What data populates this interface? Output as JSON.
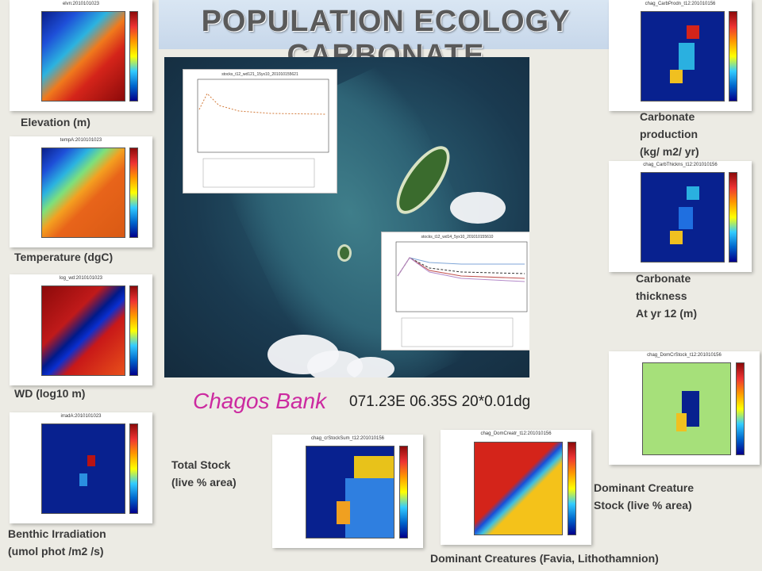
{
  "title": "POPULATION ECOLOGY CARBONATE",
  "map": {
    "name": "Chagos Bank",
    "coords": "071.23E 06.35S 20*0.01dg"
  },
  "panels": {
    "elevation": {
      "title": "elvn:2010101023",
      "label": [
        "Elevation (m)"
      ]
    },
    "temperature": {
      "title": "tempA:2010101023",
      "label": [
        "Temperature (dgC)"
      ]
    },
    "wd": {
      "title": "log_wd:2010101023",
      "label": [
        "WD (log10 m)"
      ]
    },
    "irradiation": {
      "title": "irradA:2010101023",
      "label": [
        "Benthic Irradiation",
        "(umol phot /m2 /s)"
      ]
    },
    "total_stock": {
      "title": "chag_crStockSum_t12:201010156",
      "label": [
        "Total Stock",
        "(live % area)"
      ]
    },
    "dominant_creatures": {
      "title": "chag_DomCreatr_t12:201010156",
      "label": [
        "Dominant Creatures (Favia, Lithothamnion)"
      ]
    },
    "dominant_stock": {
      "title": "chag_DomCrStock_t12:201010156",
      "label": [
        "Dominant Creature",
        "Stock (live % area)"
      ]
    },
    "carbonate_production": {
      "title": "chag_CarbProdn_t12:201010156",
      "label": [
        "Carbonate",
        "production",
        "(kg/ m2/ yr)"
      ]
    },
    "carbonate_thickness": {
      "title": "chag_CarbThickns_t12:201010156",
      "label": [
        "Carbonate",
        "thickness",
        "At yr 12 (m)"
      ]
    }
  },
  "line_plots": {
    "plot1": {
      "title": "stocks_t12_wd121_15yx10_201010155621"
    },
    "plot2": {
      "title": "stocks_t12_wd14_5yx10_201010155610"
    }
  },
  "colors": {
    "title_text": "#5a5a5a",
    "chagos_label": "#cc2aa0",
    "title_band": "#c7d7ea"
  }
}
